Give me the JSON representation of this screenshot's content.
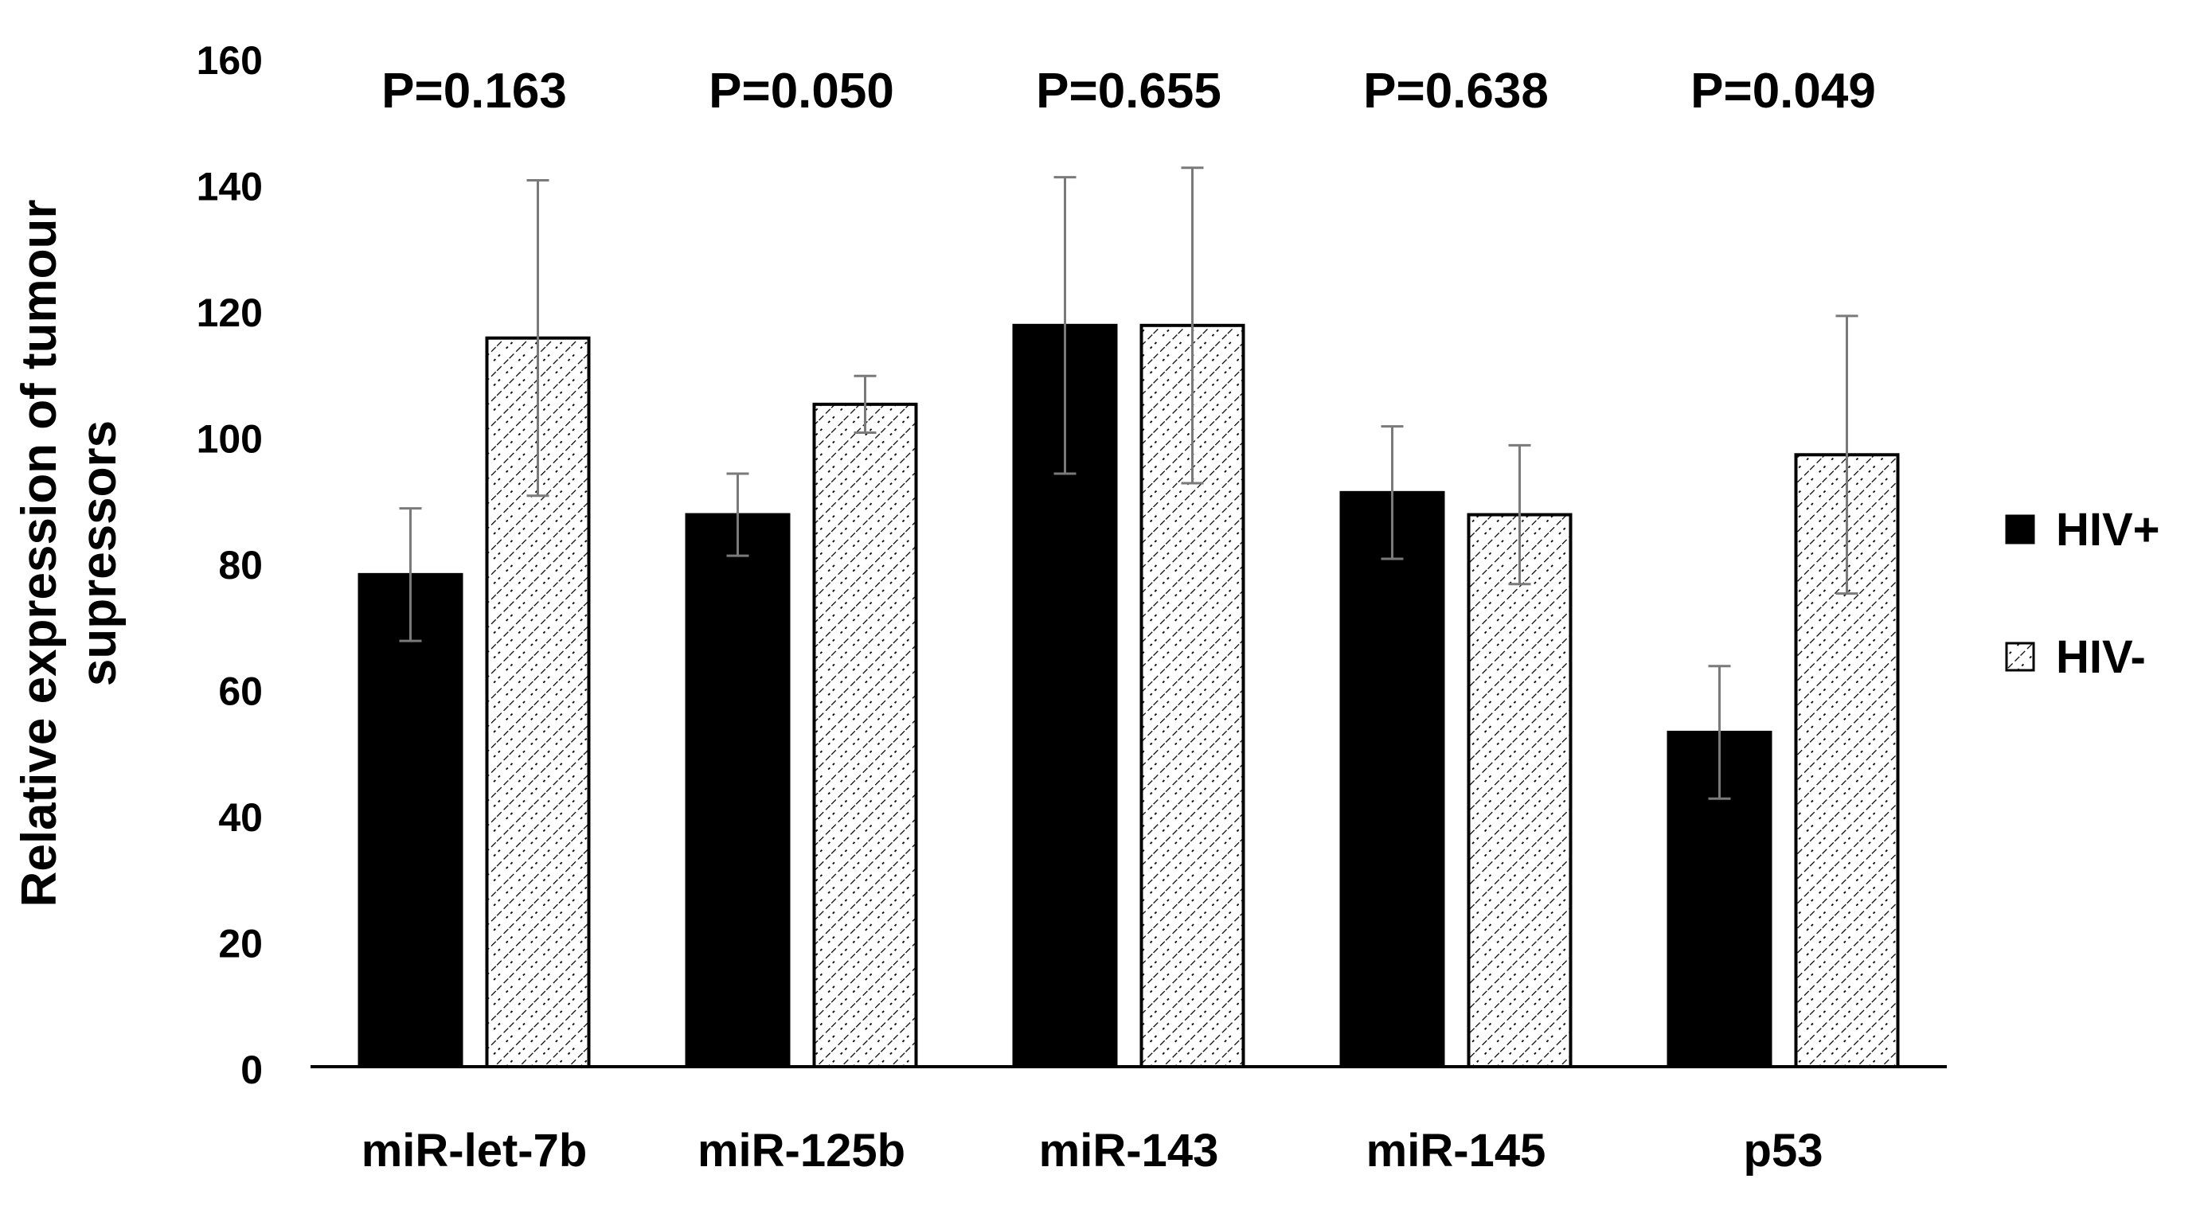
{
  "chart_data": {
    "type": "bar",
    "title": "",
    "xlabel": "",
    "ylabel_lines": [
      "Relative expression of tumour",
      "supressors"
    ],
    "categories": [
      "miR-let-7b",
      "miR-125b",
      "miR-143",
      "miR-145",
      "p53"
    ],
    "p_values": [
      "P=0.163",
      "P=0.050",
      "P=0.655",
      "P=0.638",
      "P=0.049"
    ],
    "ylim": [
      0,
      160
    ],
    "yticks": [
      "0",
      "20",
      "40",
      "60",
      "80",
      "100",
      "120",
      "140",
      "160"
    ],
    "grid": false,
    "legend_position": "right",
    "series": [
      {
        "name": "HIV+",
        "fill": "solid",
        "color": "#000000",
        "values": [
          78,
          87.5,
          117.5,
          91,
          53
        ],
        "error": [
          10.5,
          6.5,
          23.5,
          10.5,
          10.5
        ]
      },
      {
        "name": "HIV-",
        "fill": "hatched",
        "color": "#ffffff",
        "values": [
          115.5,
          105,
          117.5,
          87.5,
          97
        ],
        "error": [
          25,
          4.5,
          25,
          11,
          22
        ]
      }
    ]
  }
}
